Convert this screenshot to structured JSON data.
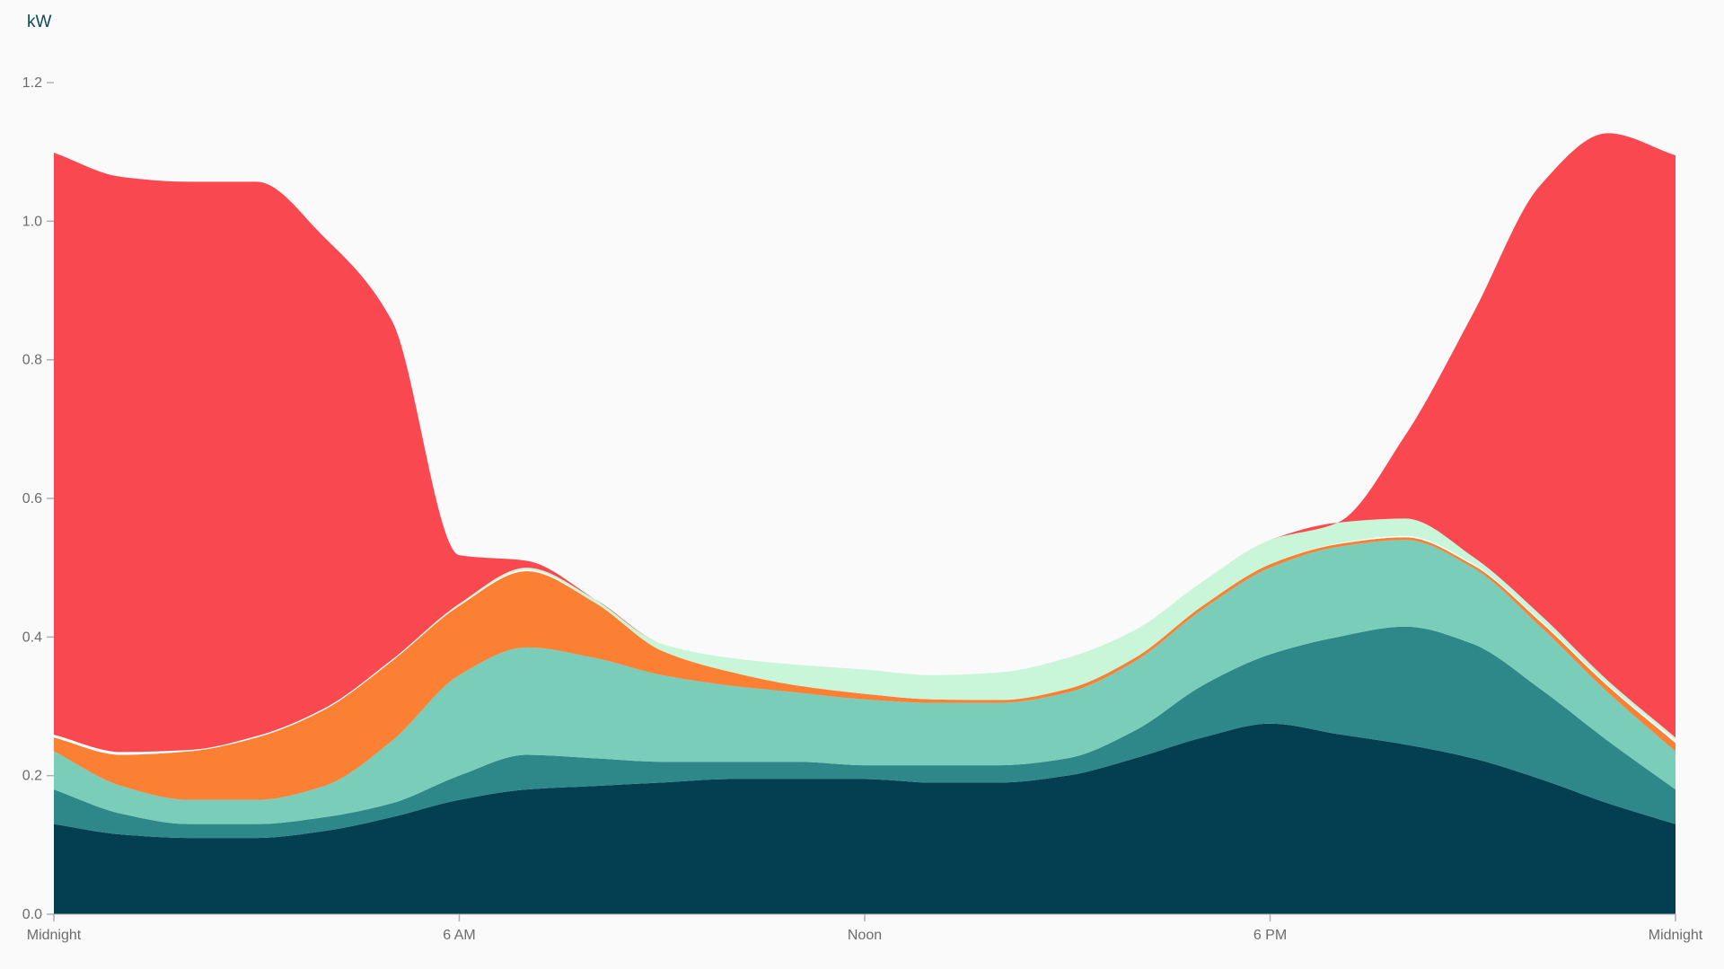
{
  "chart_data": {
    "type": "area",
    "stacked": true,
    "title": "",
    "xlabel": "",
    "ylabel": "kW",
    "ylim": [
      0,
      1.2
    ],
    "xlim": [
      0,
      24
    ],
    "grid": false,
    "legend": "none",
    "y_ticks": [
      {
        "value": 0.0,
        "label": "0.0"
      },
      {
        "value": 0.2,
        "label": "0.2"
      },
      {
        "value": 0.4,
        "label": "0.4"
      },
      {
        "value": 0.6,
        "label": "0.6"
      },
      {
        "value": 0.8,
        "label": "0.8"
      },
      {
        "value": 1.0,
        "label": "1.0"
      },
      {
        "value": 1.2,
        "label": "1.2"
      }
    ],
    "x_ticks": [
      {
        "value": 0,
        "label": "Midnight"
      },
      {
        "value": 6,
        "label": "6 AM"
      },
      {
        "value": 12,
        "label": "Noon"
      },
      {
        "value": 18,
        "label": "6 PM"
      },
      {
        "value": 24,
        "label": "Midnight"
      }
    ],
    "x": [
      0,
      1,
      2,
      3,
      4,
      5,
      6,
      7,
      8,
      9,
      10,
      11,
      12,
      13,
      14,
      15,
      16,
      17,
      18,
      19,
      20,
      21,
      22,
      23,
      24
    ],
    "series": [
      {
        "color": "#033f50",
        "values": [
          0.13,
          0.115,
          0.11,
          0.11,
          0.12,
          0.14,
          0.165,
          0.18,
          0.185,
          0.19,
          0.195,
          0.195,
          0.195,
          0.19,
          0.19,
          0.2,
          0.225,
          0.255,
          0.275,
          0.26,
          0.245,
          0.225,
          0.195,
          0.16,
          0.13
        ]
      },
      {
        "color": "#2e8789",
        "values": [
          0.05,
          0.03,
          0.02,
          0.02,
          0.02,
          0.02,
          0.035,
          0.05,
          0.04,
          0.03,
          0.025,
          0.025,
          0.02,
          0.025,
          0.025,
          0.025,
          0.04,
          0.075,
          0.1,
          0.14,
          0.17,
          0.165,
          0.13,
          0.09,
          0.05
        ]
      },
      {
        "color": "#79cdb9",
        "values": [
          0.055,
          0.04,
          0.035,
          0.035,
          0.045,
          0.09,
          0.145,
          0.155,
          0.145,
          0.125,
          0.11,
          0.1,
          0.095,
          0.09,
          0.09,
          0.095,
          0.1,
          0.11,
          0.125,
          0.13,
          0.125,
          0.11,
          0.09,
          0.07,
          0.055
        ]
      },
      {
        "color": "#fc8033",
        "values": [
          0.02,
          0.045,
          0.07,
          0.09,
          0.11,
          0.115,
          0.1,
          0.11,
          0.08,
          0.035,
          0.02,
          0.01,
          0.008,
          0.005,
          0.004,
          0.005,
          0.005,
          0.005,
          0.005,
          0.004,
          0.004,
          0.004,
          0.007,
          0.009,
          0.012
        ]
      },
      {
        "color": "#ffffff",
        "values": [
          0.004,
          0.004,
          0.002,
          0.002,
          0.002,
          0.002,
          0.001,
          0.002,
          0.0,
          0.0,
          0.0,
          0.0,
          0.0,
          0.0,
          0.0,
          0.0,
          0.0,
          0.0,
          0.0,
          0.001,
          0.002,
          0.002,
          0.002,
          0.002,
          0.004
        ]
      },
      {
        "color": "#c9f5d9",
        "values": [
          0.0,
          0.0,
          0.0,
          0.0,
          0.0,
          0.0,
          0.002,
          0.003,
          0.005,
          0.01,
          0.02,
          0.03,
          0.035,
          0.035,
          0.04,
          0.045,
          0.04,
          0.035,
          0.035,
          0.03,
          0.025,
          0.01,
          0.008,
          0.006,
          0.004
        ]
      },
      {
        "color": "#fa4850",
        "values": [
          0.84,
          0.83,
          0.82,
          0.8,
          0.68,
          0.49,
          0.07,
          0.01,
          0.0,
          0.0,
          0.0,
          0.0,
          0.0,
          0.0,
          0.0,
          0.0,
          0.0,
          0.0,
          0.0,
          0.0,
          0.12,
          0.35,
          0.62,
          0.79,
          0.84
        ]
      }
    ]
  }
}
